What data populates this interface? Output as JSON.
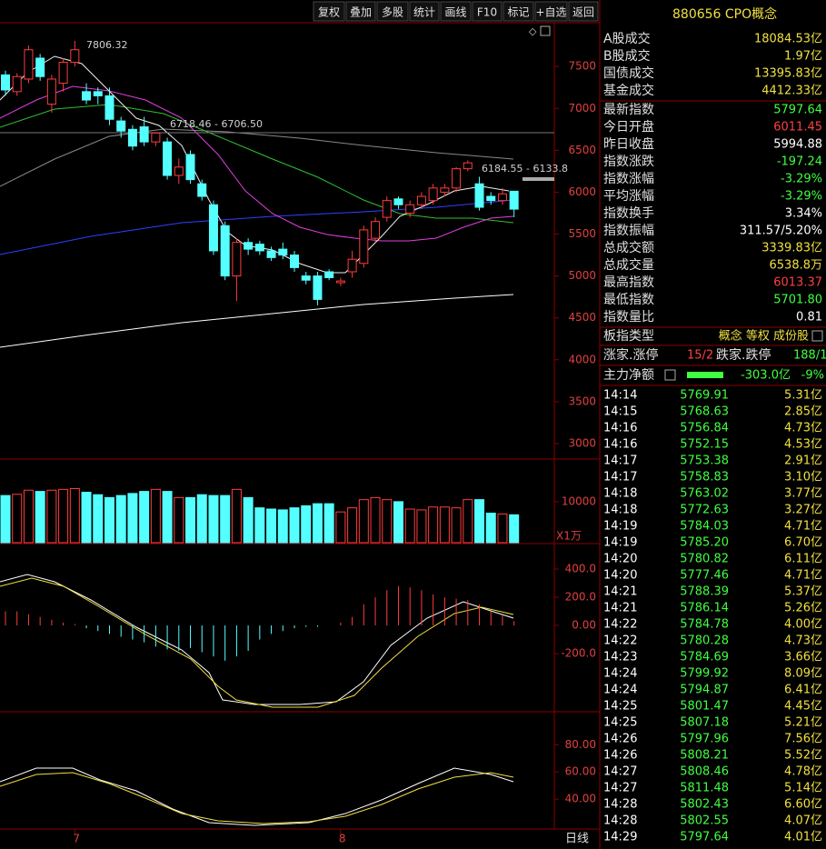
{
  "toolbar": [
    "复权",
    "叠加",
    "多股",
    "统计",
    "画线",
    "F10",
    "标记",
    "+自选",
    "返回"
  ],
  "header": {
    "title": "880656 CPO概念"
  },
  "chart": {
    "price_ylim": [
      2815,
      7990
    ],
    "price_ticks": [
      7500,
      7000,
      6500,
      6000,
      5500,
      5000,
      4500,
      4000,
      3500,
      3000
    ],
    "annotations": [
      "7806.32",
      "6718.46 - 6706.50",
      "6184.55 - 6133.8"
    ],
    "candles": [
      [
        7400,
        7450,
        7150,
        7220
      ],
      [
        7200,
        7420,
        7150,
        7380
      ],
      [
        7350,
        7750,
        7300,
        7700
      ],
      [
        7600,
        7650,
        7330,
        7380
      ],
      [
        7050,
        7400,
        6950,
        7350
      ],
      [
        7300,
        7600,
        7200,
        7550
      ],
      [
        7550,
        7806,
        7500,
        7700
      ],
      [
        7200,
        7300,
        7050,
        7100
      ],
      [
        7200,
        7250,
        7050,
        7150
      ],
      [
        7150,
        7250,
        6800,
        6870
      ],
      [
        6850,
        6900,
        6650,
        6730
      ],
      [
        6750,
        6800,
        6500,
        6550
      ],
      [
        6780,
        6900,
        6550,
        6600
      ],
      [
        6600,
        6718,
        6550,
        6706
      ],
      [
        6600,
        6650,
        6150,
        6200
      ],
      [
        6200,
        6400,
        6100,
        6300
      ],
      [
        6450,
        6500,
        6100,
        6150
      ],
      [
        6100,
        6150,
        5900,
        5950
      ],
      [
        5850,
        5900,
        5250,
        5300
      ],
      [
        5600,
        5650,
        4950,
        5000
      ],
      [
        5000,
        5450,
        4700,
        5400
      ],
      [
        5400,
        5450,
        5250,
        5320
      ],
      [
        5380,
        5420,
        5250,
        5300
      ],
      [
        5300,
        5350,
        5180,
        5220
      ],
      [
        5320,
        5400,
        5200,
        5250
      ],
      [
        5250,
        5300,
        5050,
        5100
      ],
      [
        5000,
        5050,
        4900,
        4950
      ],
      [
        5000,
        5050,
        4650,
        4720
      ],
      [
        5050,
        5080,
        4950,
        4980
      ],
      [
        4920,
        4980,
        4880,
        4940
      ],
      [
        5050,
        5300,
        4980,
        5200
      ],
      [
        5150,
        5600,
        5100,
        5550
      ],
      [
        5450,
        5700,
        5400,
        5650
      ],
      [
        5700,
        5950,
        5650,
        5900
      ],
      [
        5920,
        5950,
        5800,
        5850
      ],
      [
        5750,
        5900,
        5700,
        5850
      ],
      [
        5850,
        6000,
        5800,
        5950
      ],
      [
        5900,
        6100,
        5850,
        6050
      ],
      [
        6000,
        6100,
        5950,
        6050
      ],
      [
        6050,
        6300,
        6000,
        6280
      ],
      [
        6280,
        6380,
        6250,
        6350
      ],
      [
        6100,
        6184,
        5780,
        5820
      ],
      [
        5950,
        6000,
        5850,
        5900
      ],
      [
        5900,
        6050,
        5850,
        5980
      ],
      [
        6011.45,
        6013.37,
        5701.8,
        5797.64
      ]
    ],
    "categories": [
      null,
      null,
      null,
      null,
      null,
      null,
      "7",
      null,
      null,
      null,
      null,
      null,
      null,
      null,
      null,
      null,
      null,
      null,
      null,
      null,
      null,
      null,
      null,
      null,
      null,
      null,
      null,
      null,
      null,
      "8",
      null,
      null,
      null,
      null,
      null,
      null,
      null,
      null,
      null,
      null,
      null,
      null,
      null,
      null,
      null
    ],
    "period": "日线",
    "volume_ylim": [
      0,
      20400
    ],
    "volume_ticks": [
      10000
    ],
    "volume_unit": "X1万",
    "volumes": [
      11500,
      11800,
      12800,
      12500,
      12800,
      13000,
      13200,
      12300,
      11700,
      11000,
      11500,
      12000,
      12500,
      13000,
      12500,
      11000,
      11000,
      11700,
      11500,
      11500,
      13000,
      11000,
      8500,
      8200,
      8000,
      8500,
      9000,
      9500,
      9500,
      7500,
      8500,
      10500,
      11000,
      10500,
      10000,
      8200,
      8000,
      8700,
      8700,
      8500,
      10500,
      10500,
      7200,
      7000,
      6800
    ],
    "macd_ylim": [
      -606,
      568
    ],
    "macd_ticks": [
      {
        "value": 400,
        "label": "400.0"
      },
      {
        "value": 200,
        "label": "200.0"
      },
      {
        "value": 0,
        "label": "0.00"
      },
      {
        "value": -200,
        "label": "-200.0"
      }
    ],
    "macd_hist": [
      100,
      100,
      80,
      60,
      40,
      20,
      10,
      -20,
      -40,
      -60,
      -80,
      -100,
      -120,
      -150,
      -170,
      -180,
      -160,
      -190,
      -220,
      -250,
      -220,
      -180,
      -100,
      -60,
      -40,
      -20,
      -10,
      -10,
      0,
      20,
      60,
      150,
      200,
      250,
      280,
      270,
      250,
      220,
      200,
      190,
      180,
      150,
      100,
      70,
      30
    ],
    "kdj_ylim": [
      18,
      103
    ],
    "kdj_ticks": [
      {
        "value": 80,
        "label": "80.00"
      },
      {
        "value": 60,
        "label": "60.00"
      },
      {
        "value": 40,
        "label": "40.00"
      }
    ]
  },
  "stats": [
    [
      "A股成交",
      "18084.53亿"
    ],
    [
      "B股成交",
      "1.97亿"
    ],
    [
      "国债成交",
      "13395.83亿"
    ],
    [
      "基金成交",
      "4412.33亿"
    ],
    [
      "最新指数",
      "5797.64"
    ],
    [
      "今日开盘",
      "6011.45"
    ],
    [
      "昨日收盘",
      "5994.88"
    ],
    [
      "指数涨跌",
      "-197.24"
    ],
    [
      "指数涨幅",
      "-3.29%"
    ],
    [
      "平均涨幅",
      "-3.29%"
    ],
    [
      "指数换手",
      "3.34%"
    ],
    [
      "指数振幅",
      "311.57/5.20%"
    ],
    [
      "总成交额",
      "3339.83亿"
    ],
    [
      "总成交量",
      "6538.8万"
    ],
    [
      "最高指数",
      "6013.37"
    ],
    [
      "最低指数",
      "5701.80"
    ],
    [
      "指数量比",
      "0.81"
    ]
  ],
  "board": {
    "label": "板指类型",
    "value": "概念 等权 成份股"
  },
  "breadth": {
    "up_label": "涨家.涨停",
    "up": "15/2",
    "down_label": "跌家.跌停",
    "down": "188/1"
  },
  "flow": {
    "label": "主力净额",
    "value": "-303.0亿",
    "pct": "-9%"
  },
  "ticks": [
    [
      "14:14",
      "5769.91",
      "5.31亿"
    ],
    [
      "14:15",
      "5768.63",
      "2.85亿"
    ],
    [
      "14:16",
      "5756.84",
      "4.73亿"
    ],
    [
      "14:16",
      "5752.15",
      "4.53亿"
    ],
    [
      "14:17",
      "5753.38",
      "2.91亿"
    ],
    [
      "14:17",
      "5758.83",
      "3.10亿"
    ],
    [
      "14:18",
      "5763.02",
      "3.77亿"
    ],
    [
      "14:18",
      "5772.63",
      "3.27亿"
    ],
    [
      "14:19",
      "5784.03",
      "4.71亿"
    ],
    [
      "14:19",
      "5785.20",
      "6.70亿"
    ],
    [
      "14:20",
      "5780.82",
      "6.11亿"
    ],
    [
      "14:20",
      "5777.46",
      "4.71亿"
    ],
    [
      "14:21",
      "5788.39",
      "5.37亿"
    ],
    [
      "14:21",
      "5786.14",
      "5.26亿"
    ],
    [
      "14:22",
      "5784.78",
      "4.00亿"
    ],
    [
      "14:22",
      "5780.28",
      "4.73亿"
    ],
    [
      "14:23",
      "5784.69",
      "3.66亿"
    ],
    [
      "14:24",
      "5799.92",
      "8.09亿"
    ],
    [
      "14:24",
      "5794.87",
      "6.41亿"
    ],
    [
      "14:25",
      "5801.47",
      "4.45亿"
    ],
    [
      "14:25",
      "5807.18",
      "5.21亿"
    ],
    [
      "14:26",
      "5797.96",
      "7.56亿"
    ],
    [
      "14:26",
      "5808.21",
      "5.52亿"
    ],
    [
      "14:27",
      "5808.46",
      "4.78亿"
    ],
    [
      "14:27",
      "5811.48",
      "5.14亿"
    ],
    [
      "14:28",
      "5802.43",
      "6.60亿"
    ],
    [
      "14:28",
      "5802.55",
      "4.07亿"
    ],
    [
      "14:29",
      "5797.64",
      "4.01亿"
    ]
  ]
}
